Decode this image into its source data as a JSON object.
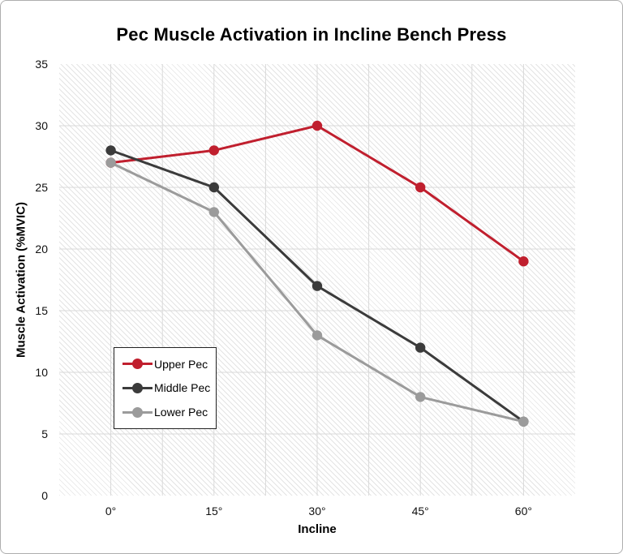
{
  "chart_data": {
    "type": "line",
    "title": "Pec Muscle Activation in Incline Bench Press",
    "xlabel": "Incline",
    "ylabel": "Muscle Activation (%MVIC)",
    "categories": [
      "0°",
      "15°",
      "30°",
      "45°",
      "60°"
    ],
    "series": [
      {
        "name": "Upper Pec",
        "color": "#c01f2e",
        "values": [
          27,
          28,
          30,
          25,
          19
        ]
      },
      {
        "name": "Middle Pec",
        "color": "#3b3b3b",
        "values": [
          28,
          25,
          17,
          12,
          6
        ]
      },
      {
        "name": "Lower Pec",
        "color": "#9b9b9b",
        "values": [
          27,
          23,
          13,
          8,
          6
        ]
      }
    ],
    "ylim": [
      0,
      35
    ],
    "yticks": [
      0,
      5,
      10,
      15,
      20,
      25,
      30,
      35
    ],
    "grid": true,
    "legend_position": "lower-left",
    "plot_bg_pattern": "diagonal-hatch",
    "colors": {
      "gridline": "#d9d9d9",
      "hatch": "#e4e4e4",
      "plot_background": "#ffffff",
      "figure_border": "#aeaeae",
      "legend_border": "#222222",
      "text": "#000000"
    }
  }
}
